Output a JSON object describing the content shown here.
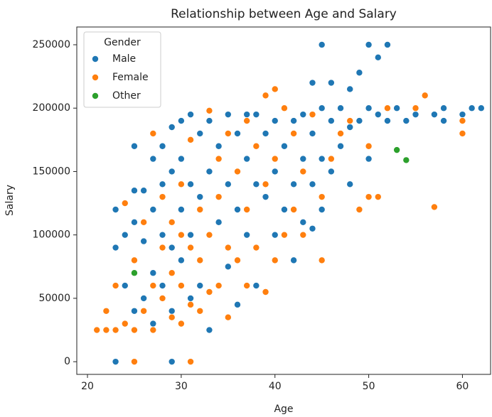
{
  "chart_data": {
    "type": "scatter",
    "title": "Relationship between Age and Salary",
    "x_label": "Age",
    "y_label": "Salary",
    "xlim": [
      18.86,
      63.0
    ],
    "ylim": [
      -10000,
      264000
    ],
    "xticks": [
      20,
      30,
      40,
      50,
      60
    ],
    "yticks": [
      0,
      50000,
      100000,
      150000,
      200000,
      250000
    ],
    "legend_title": "Gender",
    "legend_loc": "upper left",
    "series": [
      {
        "name": "Male",
        "color": "#1f77b4",
        "x": [
          23,
          29,
          23,
          23,
          24,
          24,
          25,
          25,
          25,
          25,
          26,
          26,
          26,
          27,
          27,
          27,
          27,
          28,
          28,
          28,
          28,
          29,
          29,
          29,
          29,
          30,
          30,
          30,
          30,
          31,
          31,
          31,
          31,
          32,
          32,
          32,
          33,
          33,
          33,
          34,
          34,
          35,
          35,
          35,
          36,
          36,
          36,
          37,
          37,
          37,
          38,
          38,
          38,
          39,
          39,
          40,
          40,
          40,
          41,
          41,
          41,
          42,
          42,
          42,
          43,
          43,
          43,
          44,
          44,
          44,
          44,
          45,
          45,
          45,
          45,
          46,
          46,
          46,
          47,
          47,
          48,
          48,
          48,
          49,
          49,
          50,
          50,
          50,
          51,
          51,
          52,
          52,
          53,
          54,
          55,
          56,
          57,
          58,
          58,
          60,
          61,
          62
        ],
        "values": [
          0,
          0,
          120000,
          90000,
          60000,
          100000,
          170000,
          135000,
          110000,
          40000,
          95000,
          135000,
          50000,
          160000,
          120000,
          70000,
          30000,
          170000,
          140000,
          100000,
          60000,
          185000,
          150000,
          90000,
          40000,
          190000,
          160000,
          120000,
          80000,
          195000,
          140000,
          100000,
          50000,
          180000,
          130000,
          60000,
          25000,
          190000,
          150000,
          170000,
          110000,
          195000,
          140000,
          75000,
          45000,
          180000,
          120000,
          195000,
          160000,
          100000,
          195000,
          140000,
          60000,
          180000,
          130000,
          190000,
          150000,
          100000,
          200000,
          170000,
          120000,
          190000,
          140000,
          80000,
          195000,
          160000,
          110000,
          220000,
          180000,
          140000,
          105000,
          250000,
          200000,
          160000,
          120000,
          220000,
          190000,
          150000,
          200000,
          170000,
          215000,
          185000,
          140000,
          228000,
          190000,
          250000,
          200000,
          160000,
          240000,
          195000,
          250000,
          190000,
          200000,
          190000,
          195000,
          210000,
          195000,
          200000,
          190000,
          195000,
          200000,
          200000
        ]
      },
      {
        "name": "Female",
        "color": "#ff7f0e",
        "x": [
          21,
          22,
          22,
          23,
          23,
          24,
          24,
          25,
          25,
          25,
          26,
          26,
          27,
          27,
          27,
          28,
          28,
          28,
          29,
          29,
          29,
          30,
          30,
          30,
          30,
          31,
          31,
          31,
          31,
          32,
          32,
          32,
          33,
          33,
          33,
          34,
          34,
          34,
          35,
          35,
          35,
          36,
          36,
          37,
          37,
          37,
          38,
          38,
          39,
          39,
          39,
          40,
          40,
          40,
          41,
          41,
          42,
          42,
          43,
          43,
          44,
          45,
          45,
          46,
          47,
          48,
          49,
          50,
          50,
          51,
          52,
          55,
          56,
          57,
          60,
          60
        ],
        "values": [
          25000,
          25000,
          40000,
          25000,
          60000,
          30000,
          125000,
          0,
          25000,
          80000,
          40000,
          110000,
          25000,
          60000,
          180000,
          50000,
          90000,
          130000,
          35000,
          70000,
          110000,
          30000,
          60000,
          100000,
          140000,
          0,
          45000,
          90000,
          175000,
          40000,
          80000,
          120000,
          55000,
          100000,
          198000,
          60000,
          130000,
          160000,
          35000,
          90000,
          180000,
          80000,
          150000,
          60000,
          120000,
          190000,
          90000,
          170000,
          55000,
          140000,
          210000,
          215000,
          80000,
          160000,
          200000,
          100000,
          120000,
          180000,
          100000,
          150000,
          195000,
          80000,
          130000,
          160000,
          180000,
          190000,
          120000,
          130000,
          170000,
          130000,
          200000,
          200000,
          210000,
          122000,
          190000,
          180000
        ]
      },
      {
        "name": "Other",
        "color": "#2ca02c",
        "x": [
          25,
          53,
          54
        ],
        "values": [
          70000,
          167000,
          159000
        ]
      }
    ]
  }
}
